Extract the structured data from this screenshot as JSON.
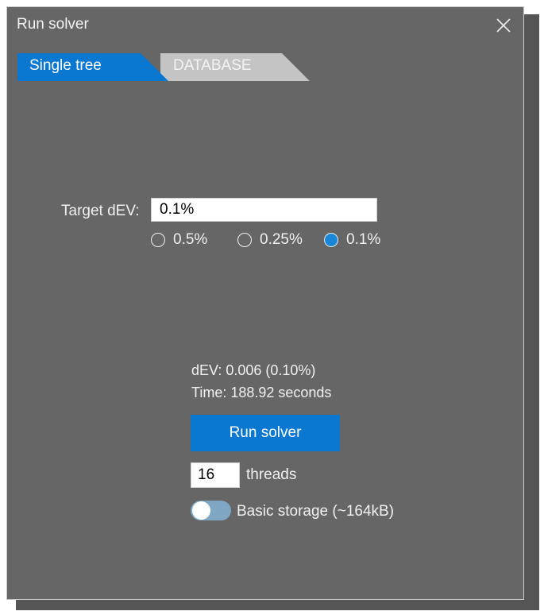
{
  "window": {
    "title": "Run solver"
  },
  "tabs": [
    {
      "label": "Single tree",
      "active": true
    },
    {
      "label": "DATABASE",
      "active": false
    }
  ],
  "target": {
    "label": "Target dEV:",
    "value": "0.1%",
    "options": [
      {
        "label": "0.5%",
        "selected": false
      },
      {
        "label": "0.25%",
        "selected": false
      },
      {
        "label": "0.1%",
        "selected": true
      }
    ]
  },
  "status": {
    "dev": "dEV: 0.006 (0.10%)",
    "time": "Time: 188.92 seconds"
  },
  "run_button": {
    "label": "Run solver"
  },
  "threads": {
    "value": "16",
    "label": "threads"
  },
  "storage": {
    "label": "Basic storage (~164kB)",
    "enabled": false
  },
  "colors": {
    "accent": "#0a78d0",
    "background": "#666666",
    "inactive_tab": "#c4c4c4",
    "toggle_track": "#7fa6c2"
  },
  "icons": {
    "close": "close-icon"
  }
}
